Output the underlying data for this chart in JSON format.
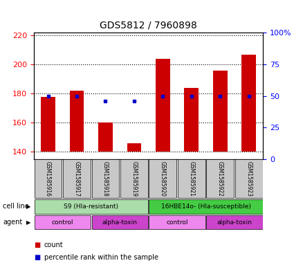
{
  "title": "GDS5812 / 7960898",
  "samples": [
    "GSM1585916",
    "GSM1585917",
    "GSM1585918",
    "GSM1585919",
    "GSM1585920",
    "GSM1585921",
    "GSM1585922",
    "GSM1585923"
  ],
  "counts": [
    178,
    182,
    160,
    146,
    204,
    184,
    196,
    207
  ],
  "percentiles": [
    50,
    50,
    46,
    46,
    50,
    50,
    50,
    50
  ],
  "ylim_left": [
    135,
    222
  ],
  "ylim_right": [
    0,
    100
  ],
  "yticks_left": [
    140,
    160,
    180,
    200,
    220
  ],
  "yticks_right": [
    0,
    25,
    50,
    75,
    100
  ],
  "ytick_labels_right": [
    "0",
    "25",
    "50",
    "75",
    "100%"
  ],
  "bar_color": "#cc0000",
  "dot_color": "#0000cc",
  "bar_base": 140,
  "cell_line_groups": [
    {
      "label": "S9 (Hla-resistant)",
      "start": 0,
      "end": 4,
      "color": "#aaddaa"
    },
    {
      "label": "16HBE14o- (Hla-susceptible)",
      "start": 4,
      "end": 8,
      "color": "#44cc44"
    }
  ],
  "agent_groups": [
    {
      "label": "control",
      "start": 0,
      "end": 2,
      "color": "#ee88ee"
    },
    {
      "label": "alpha-toxin",
      "start": 2,
      "end": 4,
      "color": "#cc44cc"
    },
    {
      "label": "control",
      "start": 4,
      "end": 6,
      "color": "#ee88ee"
    },
    {
      "label": "alpha-toxin",
      "start": 6,
      "end": 8,
      "color": "#cc44cc"
    }
  ],
  "sample_bg_color": "#c8c8c8",
  "legend_items": [
    {
      "color": "#cc0000",
      "label": "count"
    },
    {
      "color": "#0000cc",
      "label": "percentile rank within the sample"
    }
  ],
  "cell_line_label": "cell line",
  "agent_label": "agent",
  "spine_color": "#000000",
  "fig_width": 4.25,
  "fig_height": 3.93,
  "dpi": 100
}
